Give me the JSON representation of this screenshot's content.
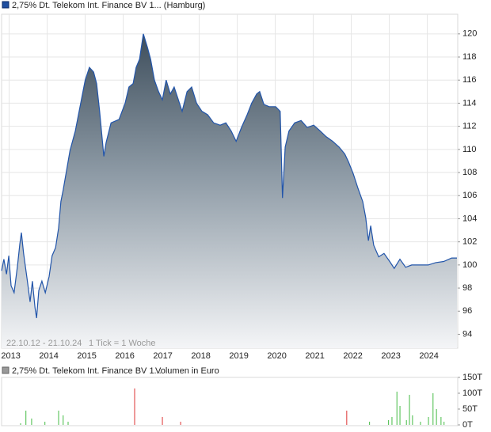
{
  "chart_data": [
    {
      "type": "area",
      "series": [
        {
          "name": "2,75% Dt. Telekom Int. Finance BV 1... (Hamburg)",
          "color": "#2255aa",
          "x": [
            2012.8,
            2012.86,
            2012.93,
            2012.99,
            2013.05,
            2013.13,
            2013.22,
            2013.28,
            2013.32,
            2013.38,
            2013.47,
            2013.55,
            2013.61,
            2013.68,
            2013.72,
            2013.78,
            2013.86,
            2013.95,
            2014.05,
            2014.13,
            2014.22,
            2014.3,
            2014.36,
            2014.42,
            2014.6,
            2014.74,
            2014.84,
            2015.0,
            2015.11,
            2015.22,
            2015.3,
            2015.38,
            2015.49,
            2015.55,
            2015.68,
            2015.89,
            2016.05,
            2016.15,
            2016.26,
            2016.34,
            2016.43,
            2016.53,
            2016.64,
            2016.72,
            2016.82,
            2016.93,
            2017.03,
            2017.13,
            2017.24,
            2017.34,
            2017.45,
            2017.55,
            2017.68,
            2017.8,
            2017.93,
            2018.07,
            2018.22,
            2018.38,
            2018.55,
            2018.7,
            2018.84,
            2018.97,
            2019.11,
            2019.26,
            2019.38,
            2019.51,
            2019.59,
            2019.7,
            2019.84,
            2020.01,
            2020.13,
            2020.19,
            2020.26,
            2020.36,
            2020.51,
            2020.68,
            2020.84,
            2021.01,
            2021.18,
            2021.34,
            2021.51,
            2021.68,
            2021.83,
            2021.93,
            2022.05,
            2022.18,
            2022.3,
            2022.38,
            2022.45,
            2022.51,
            2022.59,
            2022.72,
            2022.86,
            2023.01,
            2023.13,
            2023.28,
            2023.43,
            2023.59,
            2023.8,
            2024.02,
            2024.22,
            2024.43,
            2024.64,
            2024.78
          ],
          "values": [
            99.5,
            100.5,
            99.2,
            100.8,
            98.2,
            97.6,
            100.0,
            101.8,
            102.8,
            101.0,
            98.8,
            96.8,
            98.6,
            96.3,
            95.4,
            97.8,
            98.6,
            97.6,
            99.0,
            100.8,
            101.5,
            103.2,
            105.5,
            106.5,
            109.9,
            111.6,
            113.3,
            116.0,
            117.1,
            116.7,
            115.7,
            113.3,
            109.4,
            110.6,
            112.3,
            112.6,
            114.0,
            115.4,
            115.7,
            117.1,
            117.8,
            120.0,
            118.8,
            117.8,
            116.0,
            115.0,
            114.3,
            116.0,
            114.8,
            115.4,
            114.3,
            113.3,
            115.0,
            115.4,
            114.0,
            113.3,
            113.0,
            112.3,
            112.1,
            112.3,
            111.6,
            110.7,
            111.9,
            113.0,
            114.0,
            114.8,
            115.0,
            113.9,
            113.7,
            113.7,
            113.3,
            105.8,
            110.2,
            111.6,
            112.3,
            112.5,
            111.9,
            112.1,
            111.6,
            111.1,
            110.7,
            110.2,
            109.6,
            108.9,
            107.9,
            106.6,
            105.5,
            104.1,
            102.1,
            103.4,
            101.7,
            100.7,
            101.0,
            100.3,
            99.7,
            100.5,
            99.8,
            100.0,
            100.0,
            100.0,
            100.2,
            100.3,
            100.6,
            100.6
          ]
        }
      ],
      "annotations": [
        "22.10.12 - 21.10.24",
        "1 Tick = 1 Woche"
      ],
      "xlim": [
        2012.8,
        2024.8
      ],
      "xticks": [
        2013,
        2014,
        2015,
        2016,
        2017,
        2018,
        2019,
        2020,
        2021,
        2022,
        2023,
        2024
      ],
      "ylim": [
        92.8,
        121.7
      ],
      "yticks": [
        94,
        96,
        98,
        100,
        102,
        104,
        106,
        108,
        110,
        112,
        114,
        116,
        118,
        120
      ],
      "grid": true
    },
    {
      "type": "bar",
      "series": [
        {
          "name": "2,75% Dt. Telekom Int. Finance BV 1...",
          "color": "#888888",
          "x": [
            2013.3,
            2013.44,
            2013.59,
            2013.94,
            2014.3,
            2014.42,
            2014.55,
            2016.3,
            2017.03,
            2017.51,
            2021.88,
            2022.48,
            2022.98,
            2023.07,
            2023.2,
            2023.28,
            2023.45,
            2023.53,
            2023.61,
            2023.82,
            2024.03,
            2024.15,
            2024.24,
            2024.36,
            2024.44
          ],
          "values": [
            5,
            45,
            20,
            10,
            45,
            30,
            10,
            115,
            25,
            10,
            45,
            10,
            15,
            25,
            105,
            60,
            15,
            95,
            30,
            10,
            25,
            100,
            50,
            25,
            10
          ],
          "colors": [
            "#44bb44",
            "#44bb44",
            "#44bb44",
            "#44bb44",
            "#44bb44",
            "#44bb44",
            "#44bb44",
            "#dd3333",
            "#dd3333",
            "#dd3333",
            "#dd3333",
            "#44bb44",
            "#44bb44",
            "#44bb44",
            "#44bb44",
            "#44bb44",
            "#44bb44",
            "#44bb44",
            "#44bb44",
            "#44bb44",
            "#44bb44",
            "#44bb44",
            "#44bb44",
            "#44bb44",
            "#44bb44"
          ]
        }
      ],
      "ylabel": "Volumen in Euro",
      "xlim": [
        2012.8,
        2024.8
      ],
      "ylim": [
        0,
        150
      ],
      "yticks": [
        {
          "value": 0,
          "label": "0T"
        },
        {
          "value": 50,
          "label": "50T"
        },
        {
          "value": 100,
          "label": "100T"
        },
        {
          "value": 150,
          "label": "150T"
        }
      ]
    }
  ]
}
